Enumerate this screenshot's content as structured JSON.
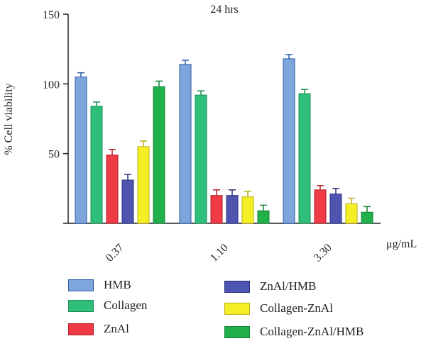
{
  "chart_data": {
    "type": "bar",
    "title": "24 hrs",
    "ylabel": "% Cell viability",
    "xunit": "μg/mL",
    "ylim": [
      0,
      150
    ],
    "yticks": [
      "0",
      "50",
      "100",
      "150"
    ],
    "categories": [
      "0.37",
      "1.10",
      "3.30"
    ],
    "series": [
      {
        "name": "HMB",
        "color": "#7ea6dc",
        "edge": "#2a5aa8",
        "values": [
          105,
          114,
          118
        ],
        "errors": [
          3,
          3,
          3
        ]
      },
      {
        "name": "Collagen",
        "color": "#2fbf7a",
        "edge": "#1b8f55",
        "values": [
          84,
          92,
          93
        ],
        "errors": [
          3,
          3,
          3
        ]
      },
      {
        "name": "ZnAl",
        "color": "#ef3b46",
        "edge": "#b01e27",
        "values": [
          49,
          20,
          24
        ],
        "errors": [
          4,
          4,
          3
        ]
      },
      {
        "name": "ZnAl/HMB",
        "color": "#4e55b0",
        "edge": "#2a2f7a",
        "values": [
          31,
          20,
          21
        ],
        "errors": [
          4,
          4,
          4
        ]
      },
      {
        "name": "Collagen-ZnAl",
        "color": "#f4ee25",
        "edge": "#b9b015",
        "values": [
          55,
          19,
          14
        ],
        "errors": [
          4,
          4,
          4
        ]
      },
      {
        "name": "Collagen-ZnAl/HMB",
        "color": "#22b04a",
        "edge": "#16803a",
        "values": [
          98,
          9,
          8
        ],
        "errors": [
          4,
          4,
          4
        ]
      }
    ],
    "legend_position": "bottom"
  }
}
